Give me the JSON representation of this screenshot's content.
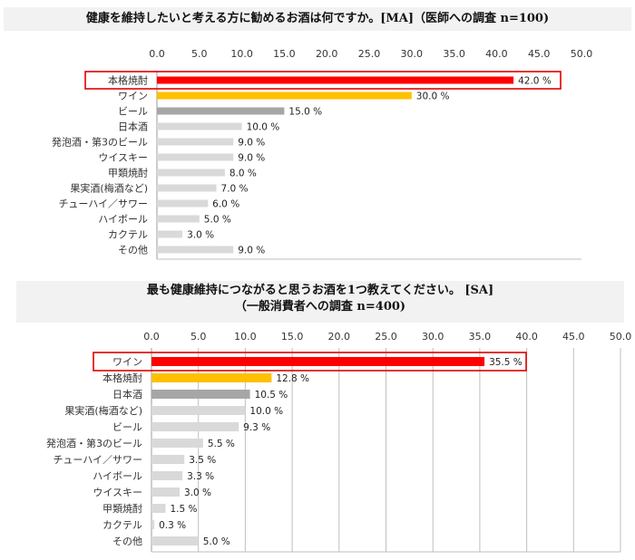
{
  "chart_data": [
    {
      "type": "bar",
      "orientation": "horizontal",
      "title": "健康を維持したいと考える方に勧めるお酒は何ですか。[MA]（医師への調査 n=100)",
      "categories": [
        "本格焼酎",
        "ワイン",
        "ビール",
        "日本酒",
        "発泡酒・第3のビール",
        "ウイスキー",
        "甲類焼酎",
        "果実酒(梅酒など)",
        "チューハイ／サワー",
        "ハイボール",
        "カクテル",
        "その他"
      ],
      "values": [
        42.0,
        30.0,
        15.0,
        10.0,
        9.0,
        9.0,
        8.0,
        7.0,
        6.0,
        5.0,
        3.0,
        9.0
      ],
      "value_labels": [
        "42.0 %",
        "30.0 %",
        "15.0 %",
        "10.0 %",
        "9.0 %",
        "9.0 %",
        "8.0 %",
        "7.0 %",
        "6.0 %",
        "5.0 %",
        "3.0 %",
        "9.0 %"
      ],
      "ticks": [
        "0.0",
        "5.0",
        "10.0",
        "15.0",
        "20.0",
        "25.0",
        "30.0",
        "35.0",
        "40.0",
        "45.0",
        "50.0"
      ],
      "xlim": [
        0,
        50
      ],
      "highlight_index": 0,
      "colors": [
        "#ff0000",
        "#ffc000",
        "#a6a6a6",
        "#d9d9d9",
        "#d9d9d9",
        "#d9d9d9",
        "#d9d9d9",
        "#d9d9d9",
        "#d9d9d9",
        "#d9d9d9",
        "#d9d9d9",
        "#d9d9d9"
      ],
      "grid": false
    },
    {
      "type": "bar",
      "orientation": "horizontal",
      "title": "最も健康維持につながると思うお酒を1つ教えてください。 [SA]",
      "subtitle": "（一般消費者への調査 n=400)",
      "categories": [
        "ワイン",
        "本格焼酎",
        "日本酒",
        "果実酒(梅酒など)",
        "ビール",
        "発泡酒・第3のビール",
        "チューハイ／サワー",
        "ハイボール",
        "ウイスキー",
        "甲類焼酎",
        "カクテル",
        "その他"
      ],
      "values": [
        35.5,
        12.8,
        10.5,
        10.0,
        9.3,
        5.5,
        3.5,
        3.3,
        3.0,
        1.5,
        0.3,
        5.0
      ],
      "value_labels": [
        "35.5 %",
        "12.8 %",
        "10.5 %",
        "10.0 %",
        "9.3 %",
        "5.5 %",
        "3.5 %",
        "3.3 %",
        "3.0 %",
        "1.5 %",
        "0.3 %",
        "5.0 %"
      ],
      "ticks": [
        "0.0",
        "5.0",
        "10.0",
        "15.0",
        "20.0",
        "25.0",
        "30.0",
        "35.0",
        "40.0",
        "45.0",
        "50.0"
      ],
      "xlim": [
        0,
        50
      ],
      "highlight_index": 0,
      "colors": [
        "#ff0000",
        "#ffc000",
        "#a6a6a6",
        "#d9d9d9",
        "#d9d9d9",
        "#d9d9d9",
        "#d9d9d9",
        "#d9d9d9",
        "#d9d9d9",
        "#d9d9d9",
        "#d9d9d9",
        "#d9d9d9"
      ],
      "grid": true
    }
  ]
}
